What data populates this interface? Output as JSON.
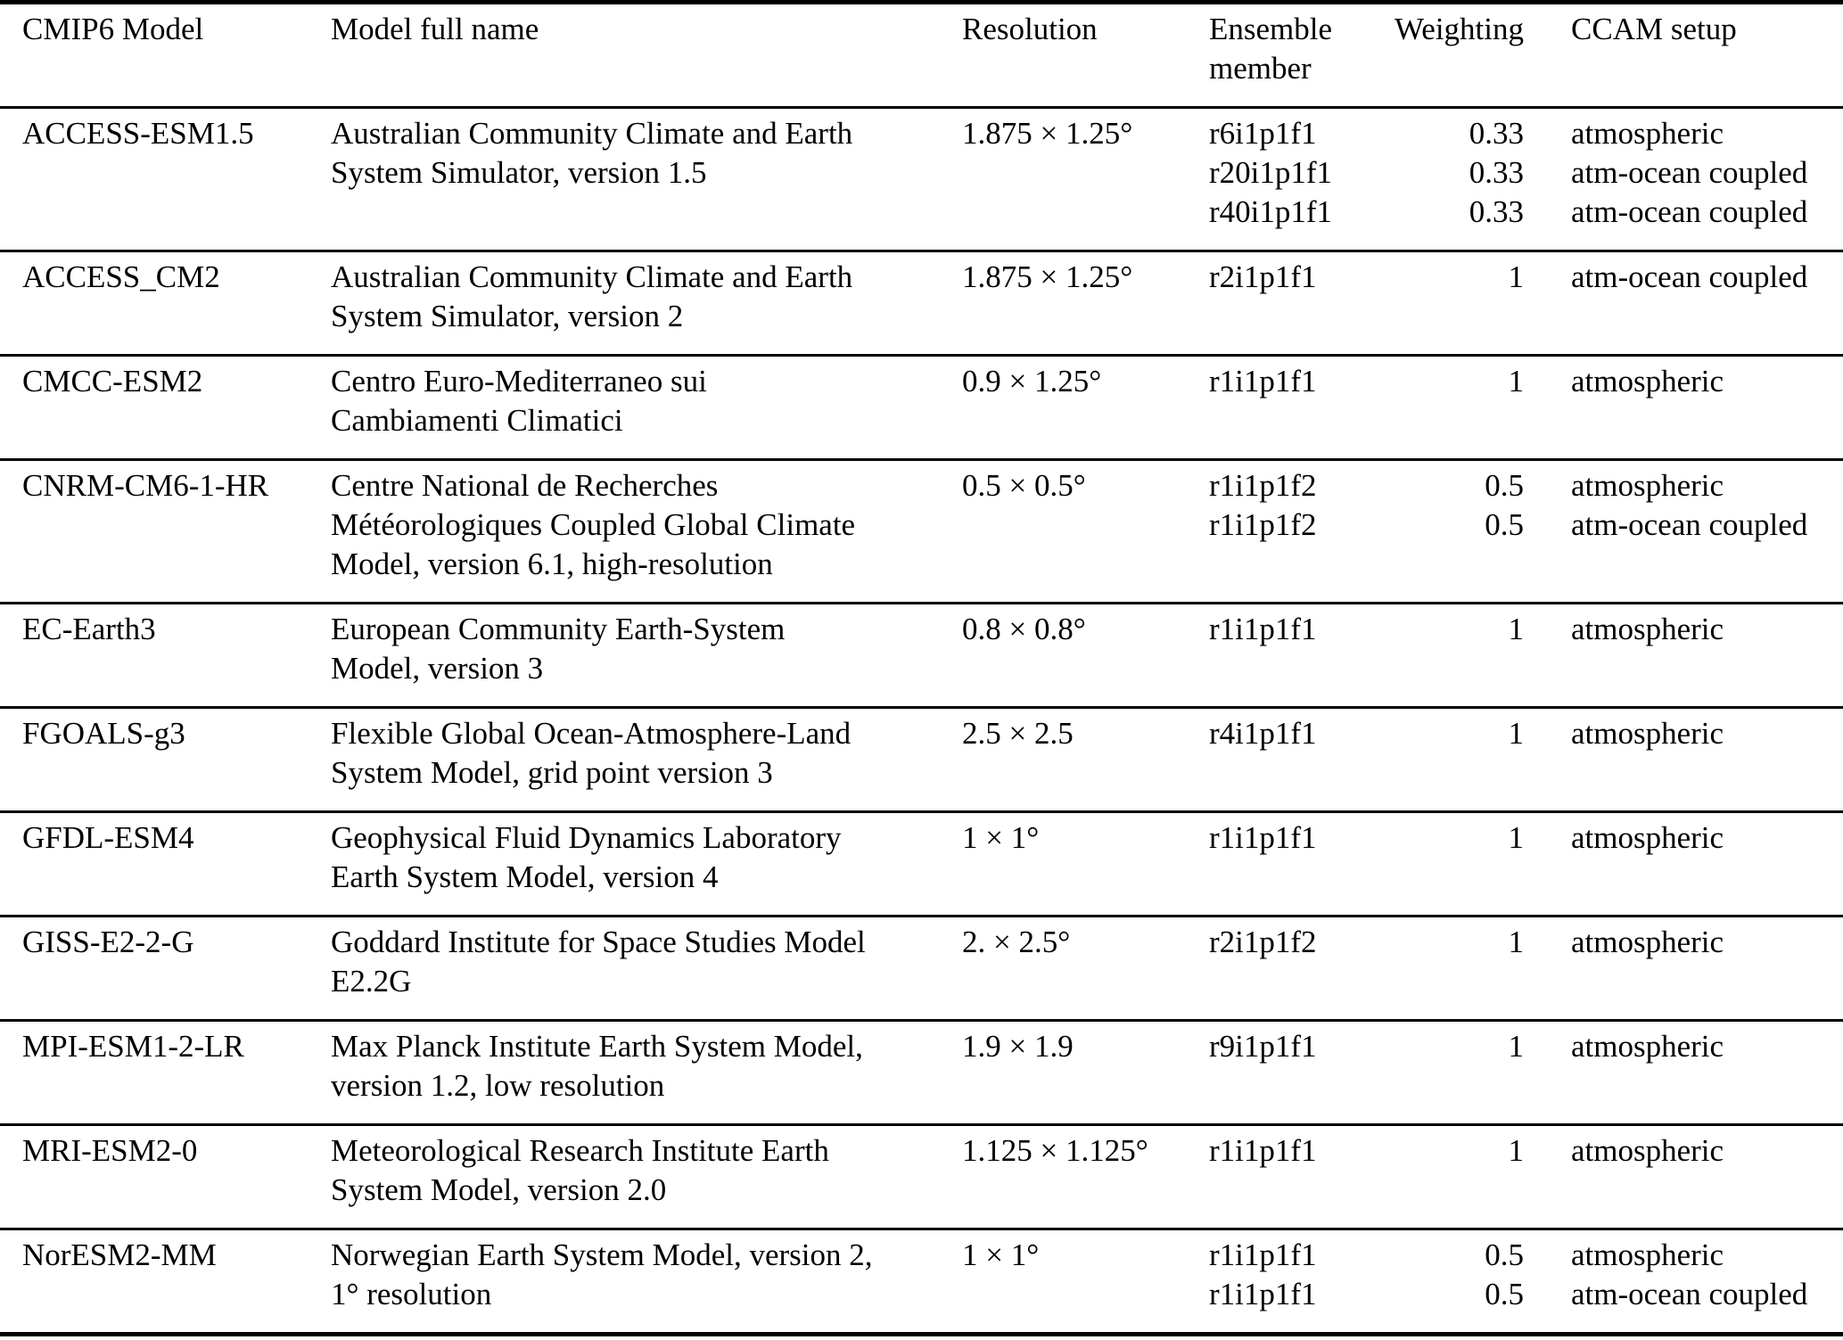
{
  "table": {
    "columns": [
      "CMIP6 Model",
      "Model full name",
      "Resolution",
      "Ensemble member",
      "Weighting",
      "CCAM setup"
    ],
    "rows": [
      {
        "model": "ACCESS-ESM1.5",
        "full_name_lines": [
          "Australian Community Climate and Earth",
          "System Simulator, version 1.5"
        ],
        "resolution": "1.875 × 1.25°",
        "members": [
          {
            "member": "r6i1p1f1",
            "weighting": "0.33",
            "setup": "atmospheric"
          },
          {
            "member": "r20i1p1f1",
            "weighting": "0.33",
            "setup": "atm-ocean coupled"
          },
          {
            "member": "r40i1p1f1",
            "weighting": "0.33",
            "setup": "atm-ocean coupled"
          }
        ]
      },
      {
        "model": "ACCESS_CM2",
        "full_name_lines": [
          "Australian Community Climate and Earth",
          "System Simulator, version 2"
        ],
        "resolution": "1.875 × 1.25°",
        "members": [
          {
            "member": "r2i1p1f1",
            "weighting": "1",
            "setup": "atm-ocean coupled"
          }
        ]
      },
      {
        "model": "CMCC-ESM2",
        "full_name_lines": [
          "Centro Euro-Mediterraneo sui",
          "Cambiamenti Climatici"
        ],
        "resolution": "0.9 × 1.25°",
        "members": [
          {
            "member": "r1i1p1f1",
            "weighting": "1",
            "setup": "atmospheric"
          }
        ]
      },
      {
        "model": "CNRM-CM6-1-HR",
        "full_name_lines": [
          "Centre National de Recherches",
          "Météorologiques Coupled Global Climate",
          "Model, version 6.1, high-resolution"
        ],
        "resolution": "0.5 × 0.5°",
        "members": [
          {
            "member": "r1i1p1f2",
            "weighting": "0.5",
            "setup": "atmospheric"
          },
          {
            "member": "r1i1p1f2",
            "weighting": "0.5",
            "setup": "atm-ocean coupled"
          }
        ]
      },
      {
        "model": "EC-Earth3",
        "full_name_lines": [
          "European Community Earth-System",
          "Model, version 3"
        ],
        "resolution": "0.8 × 0.8°",
        "members": [
          {
            "member": "r1i1p1f1",
            "weighting": "1",
            "setup": "atmospheric"
          }
        ]
      },
      {
        "model": "FGOALS-g3",
        "full_name_lines": [
          "Flexible Global Ocean-Atmosphere-Land",
          "System Model, grid point version 3"
        ],
        "resolution": "2.5 × 2.5",
        "members": [
          {
            "member": "r4i1p1f1",
            "weighting": "1",
            "setup": "atmospheric"
          }
        ]
      },
      {
        "model": "GFDL-ESM4",
        "full_name_lines": [
          "Geophysical Fluid Dynamics Laboratory",
          "Earth System Model, version 4"
        ],
        "resolution": "1 × 1°",
        "members": [
          {
            "member": "r1i1p1f1",
            "weighting": "1",
            "setup": "atmospheric"
          }
        ]
      },
      {
        "model": "GISS-E2-2-G",
        "full_name_lines": [
          "Goddard Institute for Space Studies Model",
          "E2.2G"
        ],
        "resolution": "2. × 2.5°",
        "members": [
          {
            "member": "r2i1p1f2",
            "weighting": "1",
            "setup": "atmospheric"
          }
        ]
      },
      {
        "model": "MPI-ESM1-2-LR",
        "full_name_lines": [
          "Max Planck Institute Earth System Model,",
          "version 1.2, low resolution"
        ],
        "resolution": "1.9 × 1.9",
        "members": [
          {
            "member": "r9i1p1f1",
            "weighting": "1",
            "setup": "atmospheric"
          }
        ]
      },
      {
        "model": "MRI-ESM2-0",
        "full_name_lines": [
          "Meteorological Research Institute Earth",
          "System Model, version 2.0"
        ],
        "resolution": "1.125 × 1.125°",
        "members": [
          {
            "member": "r1i1p1f1",
            "weighting": "1",
            "setup": "atmospheric"
          }
        ]
      },
      {
        "model": "NorESM2-MM",
        "full_name_lines": [
          "Norwegian Earth System Model, version 2,",
          "1° resolution"
        ],
        "resolution": "1 × 1°",
        "members": [
          {
            "member": "r1i1p1f1",
            "weighting": "0.5",
            "setup": "atmospheric"
          },
          {
            "member": "r1i1p1f1",
            "weighting": "0.5",
            "setup": "atm-ocean coupled"
          }
        ]
      }
    ]
  }
}
